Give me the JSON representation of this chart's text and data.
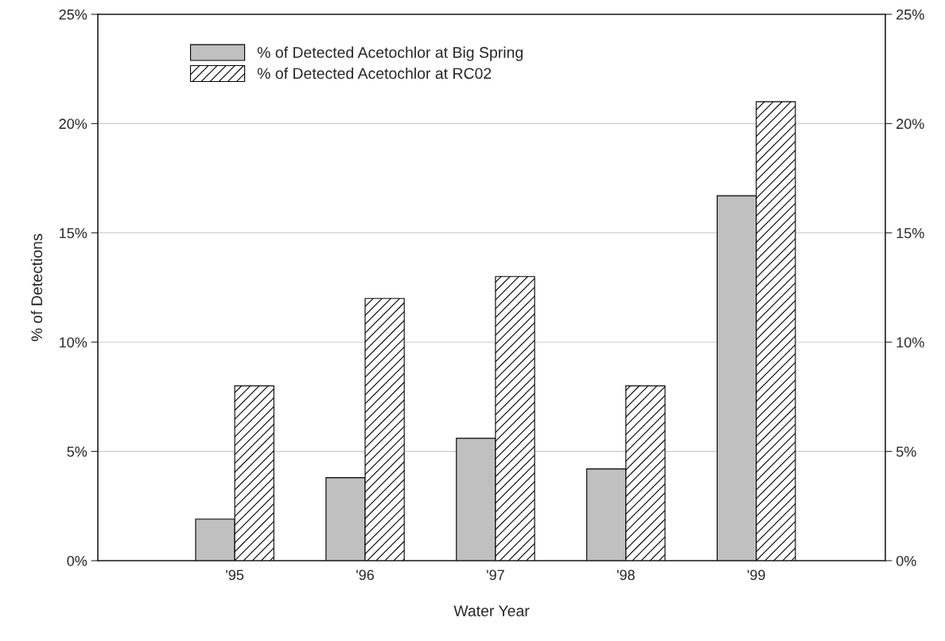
{
  "chart_data": {
    "type": "bar",
    "xlabel": "Water Year",
    "ylabel": "% of Detections",
    "categories": [
      "'95",
      "'96",
      "'97",
      "'98",
      "'99"
    ],
    "series": [
      {
        "name": "% of Detected Acetochlor at Big Spring",
        "color": "#c0c0c0",
        "values": [
          1.9,
          3.8,
          5.6,
          4.2,
          16.7
        ]
      },
      {
        "name": "% of Detected Acetochlor at RC02",
        "color": "#000000",
        "values": [
          8,
          12,
          13,
          8,
          21
        ]
      }
    ],
    "ylim": [
      0,
      25
    ],
    "yticks": [
      {
        "value": 0,
        "label": "0%"
      },
      {
        "value": 5,
        "label": "5%"
      },
      {
        "value": 10,
        "label": "10%"
      },
      {
        "value": 15,
        "label": "15%"
      },
      {
        "value": 20,
        "label": "20%"
      },
      {
        "value": 25,
        "label": "25%"
      }
    ],
    "y2lim": [
      0,
      25
    ],
    "y2ticks": [
      {
        "value": 0,
        "label": "0%"
      },
      {
        "value": 5,
        "label": "5%"
      },
      {
        "value": 10,
        "label": "10%"
      },
      {
        "value": 15,
        "label": "15%"
      },
      {
        "value": 20,
        "label": "20%"
      },
      {
        "value": 25,
        "label": "25%"
      }
    ],
    "grid": "y",
    "legend": "top left"
  }
}
